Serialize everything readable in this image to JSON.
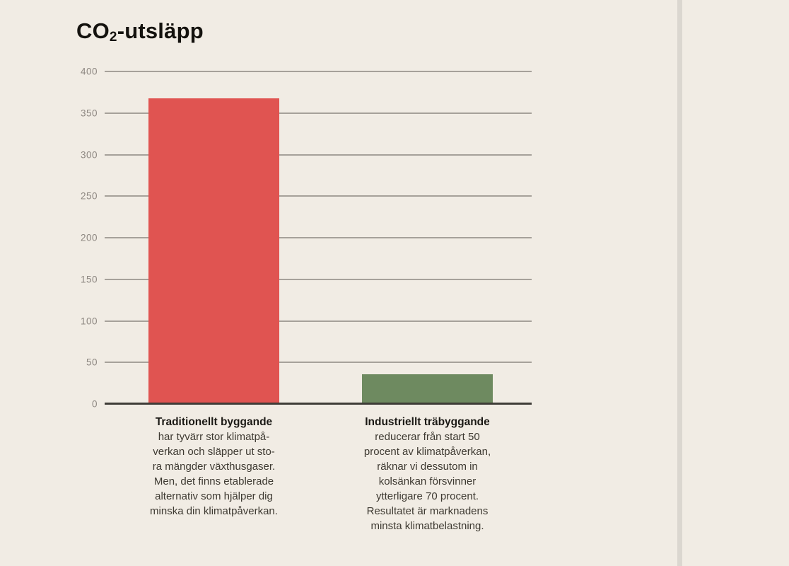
{
  "page": {
    "background": "#f1ece4",
    "divider_color": "#dbd7d0"
  },
  "chart_data": {
    "type": "bar",
    "title": "CO₂-utsläpp",
    "title_parts": {
      "prefix": "CO",
      "subscript": "2",
      "suffix": "-utsläpp"
    },
    "xlabel": "",
    "ylabel": "",
    "ylim": [
      0,
      400
    ],
    "yticks": [
      400,
      350,
      300,
      250,
      200,
      150,
      100,
      50,
      0
    ],
    "grid": true,
    "legend": "none",
    "categories": [
      "Traditionellt byggande",
      "Industriellt träbyggande"
    ],
    "values": [
      368,
      36
    ],
    "bar_colors": [
      "#e05451",
      "#6e8a60"
    ],
    "colors": {
      "gridline": "#a6a19a",
      "axisline": "#3e3c37",
      "tick_text": "#8d8781",
      "title_text": "#14120e",
      "heading_text": "#1b1915",
      "body_text": "#3e3a32"
    },
    "annotations": [
      {
        "heading": "Traditionellt byggande",
        "lines": [
          "har tyvärr stor klimatpå-",
          "verkan och släpper ut sto-",
          "ra mängder växthusgaser.",
          "Men, det finns etablerade",
          "alternativ som hjälper dig",
          "minska din klimatpåverkan."
        ]
      },
      {
        "heading": "Industriellt träbyggande",
        "lines": [
          "reducerar från start 50",
          "procent av klimatpåverkan,",
          "räknar vi dessutom in",
          "kolsänkan försvinner",
          "ytterligare 70 procent.",
          "Resultatet är marknadens",
          "minsta klimatbelastning."
        ]
      }
    ]
  }
}
